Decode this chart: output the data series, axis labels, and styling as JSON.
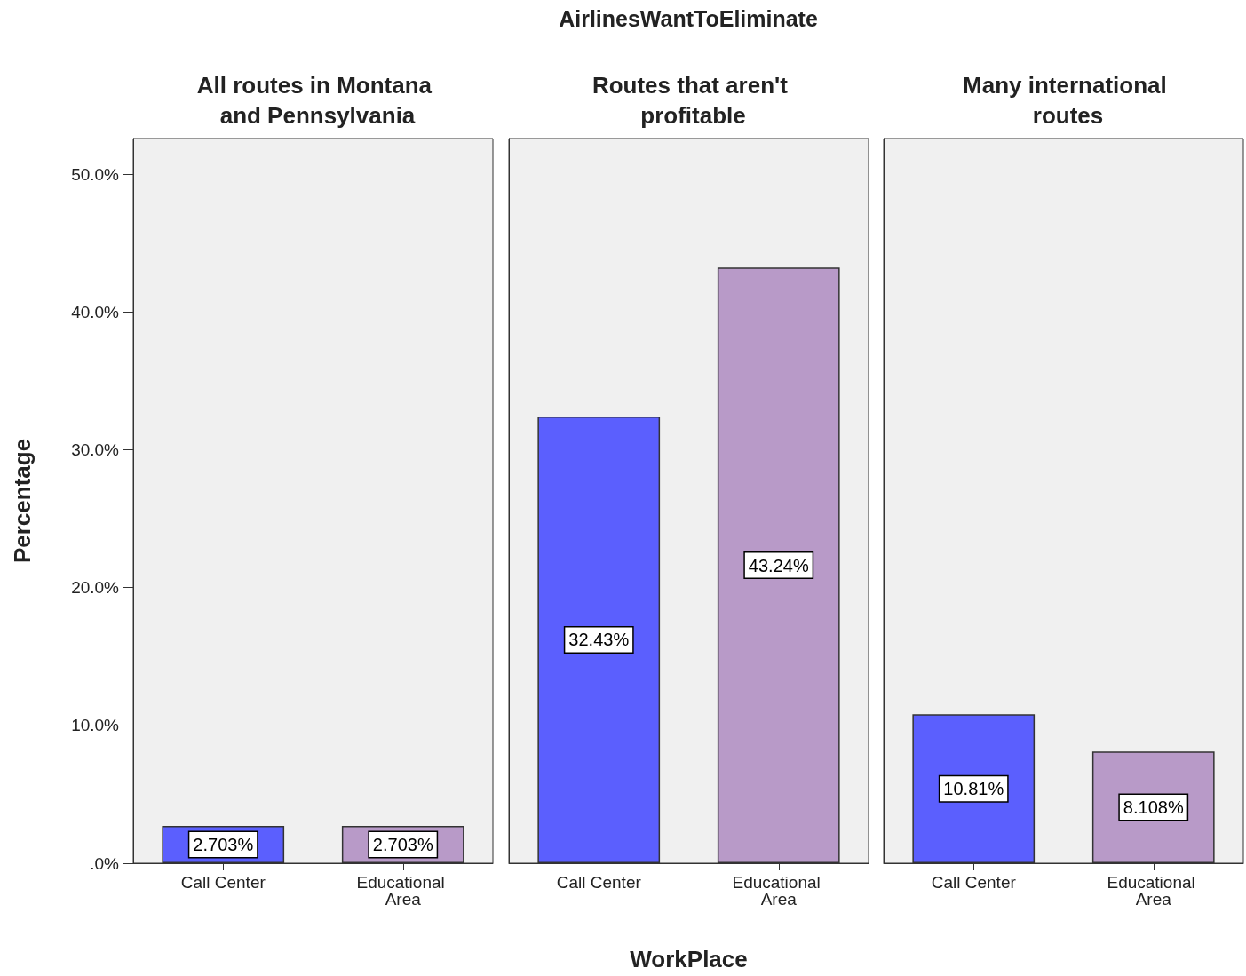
{
  "chart_data": [
    {
      "type": "bar",
      "title": "All routes in Montana and Pennsylvania",
      "ylabel": "Percentage",
      "categories": [
        "Call Center",
        "Educational Area"
      ],
      "values": [
        2.703,
        2.703
      ],
      "colors": [
        "#5b5ffe",
        "#b89ac8"
      ],
      "value_labels": [
        "2.703%",
        "2.703%"
      ],
      "ylim": [
        0,
        52.6
      ],
      "yticks": [
        {
          "value": 0,
          "label": ".0%"
        },
        {
          "value": 10,
          "label": "10.0%"
        },
        {
          "value": 20,
          "label": "20.0%"
        },
        {
          "value": 30,
          "label": "30.0%"
        },
        {
          "value": 40,
          "label": "40.0%"
        },
        {
          "value": 50,
          "label": "50.0%"
        }
      ],
      "grid": false
    },
    {
      "type": "bar",
      "title": "Routes that aren't profitable",
      "xlabel": "WorkPlace",
      "annotations": [
        "AirlinesWantToEliminate"
      ],
      "categories": [
        "Call Center",
        "Educational Area"
      ],
      "values": [
        32.43,
        43.24
      ],
      "colors": [
        "#5b5ffe",
        "#b89ac8"
      ],
      "value_labels": [
        "32.43%",
        "43.24%"
      ],
      "ylim": [
        0,
        52.6
      ],
      "tick_labels": "x",
      "grid": false
    },
    {
      "type": "bar",
      "title": "Many international routes",
      "categories": [
        "Call Center",
        "Educational Area"
      ],
      "values": [
        10.81,
        8.108
      ],
      "colors": [
        "#5b5ffe",
        "#b89ac8"
      ],
      "value_labels": [
        "10.81%",
        "8.108%"
      ],
      "ylim": [
        0,
        52.6
      ],
      "tick_labels": "x",
      "grid": false
    }
  ]
}
